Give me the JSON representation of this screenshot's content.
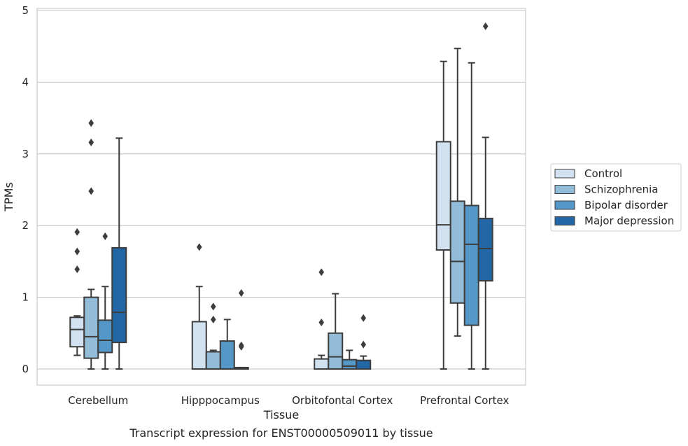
{
  "chart_data": {
    "type": "box",
    "caption": "Transcript expression for ENST00000509011 by tissue",
    "xlabel": "Tissue",
    "ylabel": "TPMs",
    "ylim": [
      -0.22,
      5.05
    ],
    "yticks": [
      0,
      1,
      2,
      3,
      4,
      5
    ],
    "grid": true,
    "legend_position": "right",
    "categories": [
      "Cerebellum",
      "Hipppocampus",
      "Orbitofontal Cortex",
      "Prefrontal Cortex"
    ],
    "series": [
      {
        "name": "Control",
        "color": "#d1e1f0",
        "boxes": [
          {
            "whisker_low": 0.19,
            "q1": 0.31,
            "median": 0.55,
            "q3": 0.72,
            "whisker_high": 0.74,
            "outliers": [
              1.39,
              1.64,
              1.91
            ]
          },
          {
            "whisker_low": 0.0,
            "q1": 0.0,
            "median": 0.0,
            "q3": 0.66,
            "whisker_high": 1.15,
            "outliers": [
              1.7
            ]
          },
          {
            "whisker_low": 0.0,
            "q1": 0.0,
            "median": 0.0,
            "q3": 0.14,
            "whisker_high": 0.19,
            "outliers": [
              0.65,
              1.35
            ]
          },
          {
            "whisker_low": 0.0,
            "q1": 1.66,
            "median": 2.01,
            "q3": 3.17,
            "whisker_high": 4.29,
            "outliers": []
          }
        ]
      },
      {
        "name": "Schizophrenia",
        "color": "#92bcd8",
        "boxes": [
          {
            "whisker_low": 0.0,
            "q1": 0.15,
            "median": 0.45,
            "q3": 1.0,
            "whisker_high": 1.11,
            "outliers": [
              2.48,
              3.16,
              3.43
            ]
          },
          {
            "whisker_low": 0.0,
            "q1": 0.0,
            "median": 0.0,
            "q3": 0.24,
            "whisker_high": 0.26,
            "outliers": [
              0.69,
              0.87
            ]
          },
          {
            "whisker_low": 0.0,
            "q1": 0.0,
            "median": 0.17,
            "q3": 0.5,
            "whisker_high": 1.05,
            "outliers": []
          },
          {
            "whisker_low": 0.46,
            "q1": 0.92,
            "median": 1.5,
            "q3": 2.34,
            "whisker_high": 4.47,
            "outliers": []
          }
        ]
      },
      {
        "name": "Bipolar disorder",
        "color": "#5597c6",
        "boxes": [
          {
            "whisker_low": 0.0,
            "q1": 0.23,
            "median": 0.4,
            "q3": 0.68,
            "whisker_high": 1.15,
            "outliers": [
              1.85
            ]
          },
          {
            "whisker_low": 0.0,
            "q1": 0.0,
            "median": 0.0,
            "q3": 0.39,
            "whisker_high": 0.69,
            "outliers": []
          },
          {
            "whisker_low": 0.0,
            "q1": 0.0,
            "median": 0.04,
            "q3": 0.13,
            "whisker_high": 0.26,
            "outliers": []
          },
          {
            "whisker_low": 0.0,
            "q1": 0.61,
            "median": 1.74,
            "q3": 2.28,
            "whisker_high": 4.27,
            "outliers": []
          }
        ]
      },
      {
        "name": "Major depression",
        "color": "#2366a5",
        "boxes": [
          {
            "whisker_low": 0.0,
            "q1": 0.37,
            "median": 0.79,
            "q3": 1.69,
            "whisker_high": 3.22,
            "outliers": []
          },
          {
            "whisker_low": 0.0,
            "q1": 0.0,
            "median": 0.0,
            "q3": 0.02,
            "whisker_high": 0.02,
            "outliers": [
              0.31,
              0.33,
              1.06
            ]
          },
          {
            "whisker_low": 0.0,
            "q1": 0.0,
            "median": 0.0,
            "q3": 0.12,
            "whisker_high": 0.18,
            "outliers": [
              0.34,
              0.71
            ]
          },
          {
            "whisker_low": 0.0,
            "q1": 1.23,
            "median": 1.68,
            "q3": 2.1,
            "whisker_high": 3.23,
            "outliers": [
              4.78
            ]
          }
        ]
      }
    ]
  }
}
